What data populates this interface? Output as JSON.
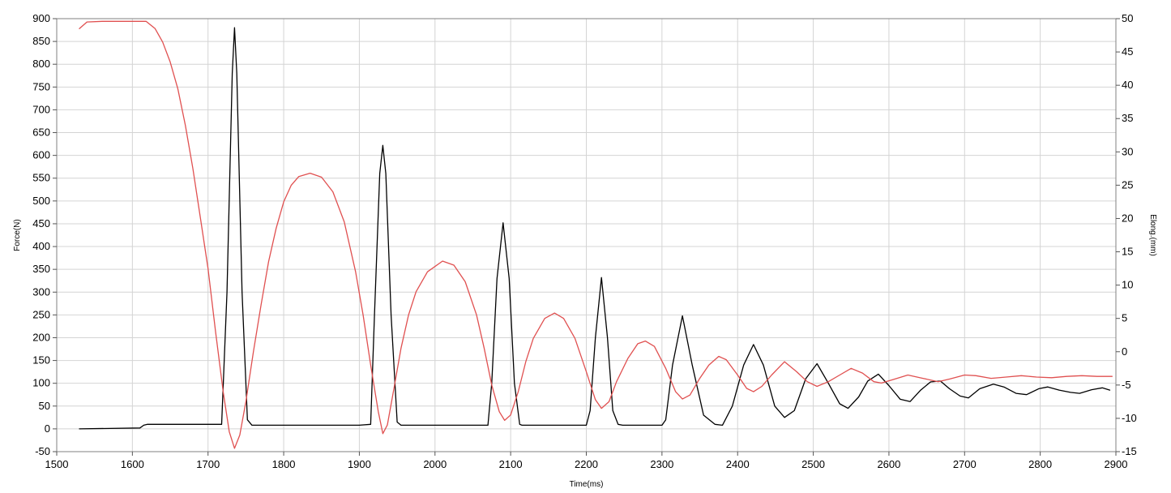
{
  "chart_data": {
    "type": "line",
    "xlabel": "Time(ms)",
    "ylabel": "Force(N)",
    "y2label": "Elong.(mm)",
    "xlim": [
      1500,
      2900
    ],
    "ylim": [
      -50,
      900
    ],
    "y2lim": [
      -15,
      50
    ],
    "xticks": [
      1500,
      1600,
      1700,
      1800,
      1900,
      2000,
      2100,
      2200,
      2300,
      2400,
      2500,
      2600,
      2700,
      2800,
      2900
    ],
    "yticks": [
      -50,
      0,
      50,
      100,
      150,
      200,
      250,
      300,
      350,
      400,
      450,
      500,
      550,
      600,
      650,
      700,
      750,
      800,
      850,
      900
    ],
    "y2ticks": [
      -15,
      -10,
      -5,
      0,
      5,
      10,
      15,
      20,
      25,
      30,
      35,
      40,
      45,
      50
    ],
    "grid": true,
    "legend": "none",
    "series": [
      {
        "axis": "left",
        "color": "#000000",
        "points": [
          [
            1530,
            0
          ],
          [
            1610,
            2
          ],
          [
            1615,
            8
          ],
          [
            1620,
            10
          ],
          [
            1700,
            10
          ],
          [
            1718,
            10
          ],
          [
            1725,
            300
          ],
          [
            1732,
            780
          ],
          [
            1735,
            880
          ],
          [
            1738,
            780
          ],
          [
            1745,
            300
          ],
          [
            1752,
            20
          ],
          [
            1758,
            8
          ],
          [
            1900,
            8
          ],
          [
            1915,
            10
          ],
          [
            1920,
            250
          ],
          [
            1927,
            560
          ],
          [
            1931,
            622
          ],
          [
            1935,
            560
          ],
          [
            1942,
            250
          ],
          [
            1950,
            15
          ],
          [
            1955,
            8
          ],
          [
            2070,
            8
          ],
          [
            2075,
            100
          ],
          [
            2082,
            330
          ],
          [
            2090,
            452
          ],
          [
            2098,
            330
          ],
          [
            2105,
            100
          ],
          [
            2112,
            10
          ],
          [
            2115,
            8
          ],
          [
            2200,
            8
          ],
          [
            2205,
            40
          ],
          [
            2212,
            200
          ],
          [
            2220,
            332
          ],
          [
            2228,
            200
          ],
          [
            2235,
            40
          ],
          [
            2242,
            10
          ],
          [
            2248,
            8
          ],
          [
            2300,
            8
          ],
          [
            2305,
            20
          ],
          [
            2314,
            140
          ],
          [
            2327,
            248
          ],
          [
            2340,
            140
          ],
          [
            2355,
            30
          ],
          [
            2370,
            10
          ],
          [
            2380,
            8
          ],
          [
            2393,
            50
          ],
          [
            2408,
            140
          ],
          [
            2421,
            185
          ],
          [
            2434,
            140
          ],
          [
            2449,
            50
          ],
          [
            2462,
            25
          ],
          [
            2475,
            40
          ],
          [
            2490,
            110
          ],
          [
            2505,
            143
          ],
          [
            2520,
            100
          ],
          [
            2535,
            55
          ],
          [
            2546,
            45
          ],
          [
            2560,
            70
          ],
          [
            2572,
            105
          ],
          [
            2586,
            120
          ],
          [
            2600,
            95
          ],
          [
            2615,
            65
          ],
          [
            2628,
            60
          ],
          [
            2642,
            85
          ],
          [
            2655,
            103
          ],
          [
            2668,
            105
          ],
          [
            2680,
            88
          ],
          [
            2694,
            72
          ],
          [
            2705,
            68
          ],
          [
            2720,
            88
          ],
          [
            2738,
            98
          ],
          [
            2752,
            92
          ],
          [
            2768,
            78
          ],
          [
            2782,
            75
          ],
          [
            2798,
            88
          ],
          [
            2810,
            92
          ],
          [
            2825,
            85
          ],
          [
            2840,
            80
          ],
          [
            2852,
            78
          ],
          [
            2868,
            86
          ],
          [
            2882,
            90
          ],
          [
            2892,
            85
          ]
        ]
      },
      {
        "axis": "right",
        "color": "#e05050",
        "points": [
          [
            1530,
            48.5
          ],
          [
            1540,
            49.5
          ],
          [
            1560,
            49.6
          ],
          [
            1600,
            49.6
          ],
          [
            1618,
            49.6
          ],
          [
            1630,
            48.5
          ],
          [
            1640,
            46.5
          ],
          [
            1650,
            43.5
          ],
          [
            1660,
            39.5
          ],
          [
            1670,
            34.0
          ],
          [
            1680,
            27.5
          ],
          [
            1690,
            20.0
          ],
          [
            1700,
            12.5
          ],
          [
            1710,
            3.0
          ],
          [
            1720,
            -6.0
          ],
          [
            1728,
            -12.0
          ],
          [
            1735,
            -14.5
          ],
          [
            1742,
            -12.5
          ],
          [
            1750,
            -7.5
          ],
          [
            1760,
            0.0
          ],
          [
            1770,
            7.0
          ],
          [
            1780,
            13.5
          ],
          [
            1790,
            18.5
          ],
          [
            1800,
            22.5
          ],
          [
            1810,
            25.0
          ],
          [
            1820,
            26.3
          ],
          [
            1835,
            26.8
          ],
          [
            1850,
            26.2
          ],
          [
            1865,
            24.0
          ],
          [
            1880,
            19.5
          ],
          [
            1895,
            12.0
          ],
          [
            1905,
            5.5
          ],
          [
            1915,
            -2.0
          ],
          [
            1925,
            -9.0
          ],
          [
            1931,
            -12.3
          ],
          [
            1937,
            -11.0
          ],
          [
            1945,
            -6.0
          ],
          [
            1955,
            0.5
          ],
          [
            1965,
            5.5
          ],
          [
            1975,
            9.0
          ],
          [
            1990,
            12.0
          ],
          [
            2010,
            13.6
          ],
          [
            2025,
            13.0
          ],
          [
            2040,
            10.5
          ],
          [
            2055,
            5.5
          ],
          [
            2065,
            0.5
          ],
          [
            2075,
            -5.0
          ],
          [
            2085,
            -9.0
          ],
          [
            2092,
            -10.3
          ],
          [
            2100,
            -9.5
          ],
          [
            2110,
            -6.0
          ],
          [
            2120,
            -1.5
          ],
          [
            2130,
            2.0
          ],
          [
            2145,
            5.0
          ],
          [
            2158,
            5.8
          ],
          [
            2170,
            5.0
          ],
          [
            2185,
            2.0
          ],
          [
            2200,
            -3.0
          ],
          [
            2212,
            -7.2
          ],
          [
            2220,
            -8.5
          ],
          [
            2230,
            -7.5
          ],
          [
            2240,
            -4.5
          ],
          [
            2255,
            -1.0
          ],
          [
            2268,
            1.2
          ],
          [
            2278,
            1.6
          ],
          [
            2290,
            0.8
          ],
          [
            2305,
            -2.5
          ],
          [
            2318,
            -6.0
          ],
          [
            2327,
            -7.1
          ],
          [
            2337,
            -6.5
          ],
          [
            2350,
            -4.0
          ],
          [
            2362,
            -2.0
          ],
          [
            2375,
            -0.7
          ],
          [
            2385,
            -1.2
          ],
          [
            2400,
            -3.5
          ],
          [
            2412,
            -5.5
          ],
          [
            2421,
            -6.0
          ],
          [
            2432,
            -5.2
          ],
          [
            2445,
            -3.5
          ],
          [
            2462,
            -1.5
          ],
          [
            2478,
            -3.0
          ],
          [
            2492,
            -4.5
          ],
          [
            2505,
            -5.2
          ],
          [
            2520,
            -4.5
          ],
          [
            2535,
            -3.5
          ],
          [
            2550,
            -2.5
          ],
          [
            2565,
            -3.2
          ],
          [
            2580,
            -4.5
          ],
          [
            2590,
            -4.7
          ],
          [
            2605,
            -4.2
          ],
          [
            2625,
            -3.5
          ],
          [
            2645,
            -4.0
          ],
          [
            2665,
            -4.5
          ],
          [
            2680,
            -4.1
          ],
          [
            2700,
            -3.5
          ],
          [
            2715,
            -3.6
          ],
          [
            2735,
            -4.0
          ],
          [
            2755,
            -3.8
          ],
          [
            2775,
            -3.6
          ],
          [
            2795,
            -3.8
          ],
          [
            2815,
            -3.9
          ],
          [
            2835,
            -3.7
          ],
          [
            2855,
            -3.6
          ],
          [
            2875,
            -3.7
          ],
          [
            2895,
            -3.7
          ]
        ]
      }
    ]
  }
}
